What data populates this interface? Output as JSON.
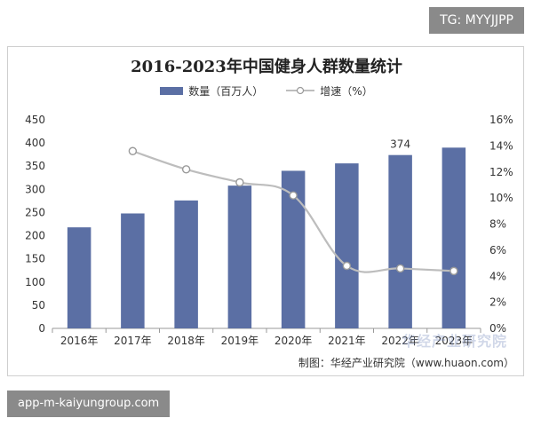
{
  "tags": {
    "top": "TG: MYYJJPP",
    "bottom": "app-m-kaiyungroup.com"
  },
  "colors": {
    "bar": "#5b6fa4",
    "line": "#bdbdbd",
    "marker_fill": "#ffffff",
    "marker_stroke": "#9a9a9a"
  },
  "source": "制图：华经产业研究院（www.huaon.com）",
  "watermark": "华经产业研究院",
  "chart_data": {
    "type": "bar",
    "title": "2016-2023年中国健身人群数量统计",
    "categories": [
      "2016年",
      "2017年",
      "2018年",
      "2019年",
      "2020年",
      "2021年",
      "2022年",
      "2023年"
    ],
    "series": [
      {
        "name": "数量（百万人）",
        "type": "bar",
        "axis": "left",
        "values": [
          218,
          248,
          276,
          308,
          340,
          356,
          374,
          390
        ]
      },
      {
        "name": "增速（%）",
        "type": "line",
        "axis": "right",
        "values": [
          null,
          13.6,
          12.2,
          11.2,
          10.2,
          4.8,
          4.6,
          4.4
        ]
      }
    ],
    "data_labels": [
      {
        "category": "2022年",
        "text": "374"
      }
    ],
    "y_left": {
      "min": 0,
      "max": 450,
      "step": 50,
      "ticks": [
        "0",
        "50",
        "100",
        "150",
        "200",
        "250",
        "300",
        "350",
        "400",
        "450"
      ]
    },
    "y_right": {
      "min": 0,
      "max": 16,
      "step": 2,
      "ticks": [
        "0%",
        "2%",
        "4%",
        "6%",
        "8%",
        "10%",
        "12%",
        "14%",
        "16%"
      ]
    },
    "grid": false,
    "legend": "top-center"
  }
}
